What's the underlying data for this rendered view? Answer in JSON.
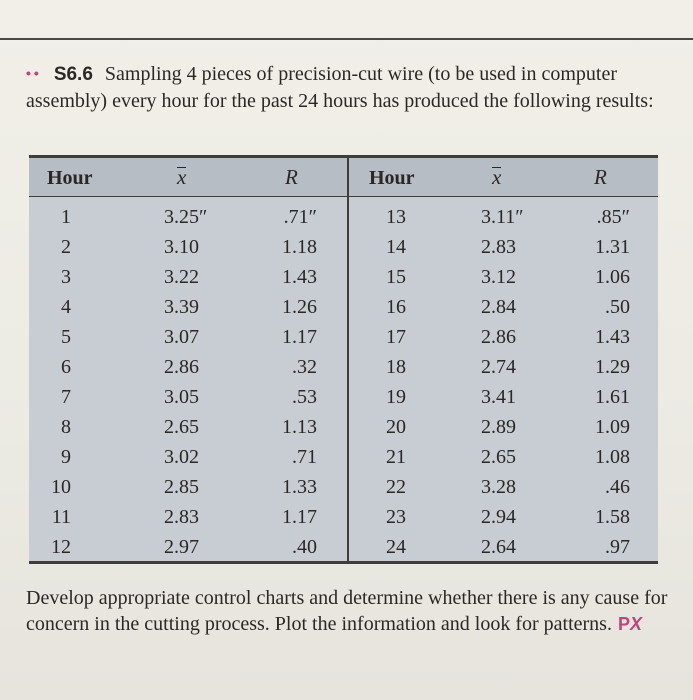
{
  "problem": {
    "marker": "••",
    "number": "S6.6",
    "text": "Sampling 4 pieces of precision-cut wire (to be used in computer assembly) every hour for the past 24 hours has produced the following results:"
  },
  "table": {
    "headers": {
      "hour": "Hour",
      "xbar": "x",
      "range": "R"
    },
    "left": [
      {
        "hour": "1",
        "x": "3.25″",
        "r": ".71″"
      },
      {
        "hour": "2",
        "x": "3.10",
        "r": "1.18"
      },
      {
        "hour": "3",
        "x": "3.22",
        "r": "1.43"
      },
      {
        "hour": "4",
        "x": "3.39",
        "r": "1.26"
      },
      {
        "hour": "5",
        "x": "3.07",
        "r": "1.17"
      },
      {
        "hour": "6",
        "x": "2.86",
        "r": ".32"
      },
      {
        "hour": "7",
        "x": "3.05",
        "r": ".53"
      },
      {
        "hour": "8",
        "x": "2.65",
        "r": "1.13"
      },
      {
        "hour": "9",
        "x": "3.02",
        "r": ".71"
      },
      {
        "hour": "10",
        "x": "2.85",
        "r": "1.33"
      },
      {
        "hour": "11",
        "x": "2.83",
        "r": "1.17"
      },
      {
        "hour": "12",
        "x": "2.97",
        "r": ".40"
      }
    ],
    "right": [
      {
        "hour": "13",
        "x": "3.11″",
        "r": ".85″"
      },
      {
        "hour": "14",
        "x": "2.83",
        "r": "1.31"
      },
      {
        "hour": "15",
        "x": "3.12",
        "r": "1.06"
      },
      {
        "hour": "16",
        "x": "2.84",
        "r": ".50"
      },
      {
        "hour": "17",
        "x": "2.86",
        "r": "1.43"
      },
      {
        "hour": "18",
        "x": "2.74",
        "r": "1.29"
      },
      {
        "hour": "19",
        "x": "3.41",
        "r": "1.61"
      },
      {
        "hour": "20",
        "x": "2.89",
        "r": "1.09"
      },
      {
        "hour": "21",
        "x": "2.65",
        "r": "1.08"
      },
      {
        "hour": "22",
        "x": "3.28",
        "r": ".46"
      },
      {
        "hour": "23",
        "x": "2.94",
        "r": "1.58"
      },
      {
        "hour": "24",
        "x": "2.64",
        "r": ".97"
      }
    ]
  },
  "footer": {
    "text": "Develop appropriate control charts and determine whether there is any cause for concern in the cutting process. Plot the information and look for patterns.",
    "logo_p": "P",
    "logo_x": "X"
  }
}
